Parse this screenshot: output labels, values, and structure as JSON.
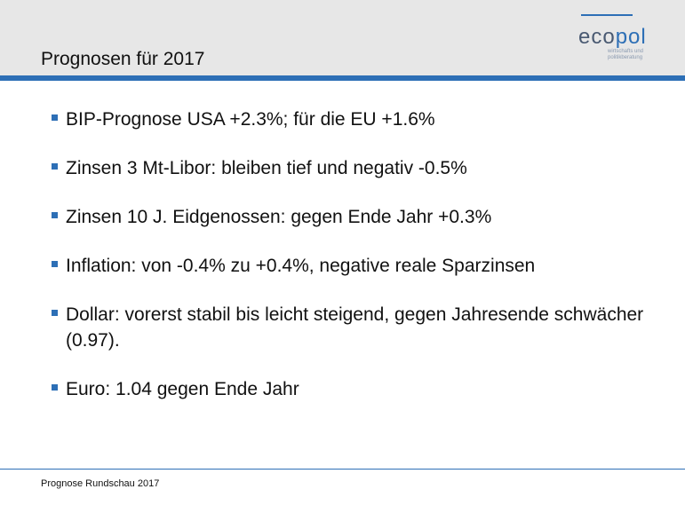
{
  "header": {
    "title": "Prognosen für 2017"
  },
  "logo": {
    "word_main": "eco",
    "word_accent": "pol",
    "tagline_line1": "wirtschafts und",
    "tagline_line2": "politikberatung"
  },
  "bullets": [
    {
      "text": "BIP-Prognose USA +2.3%; für die EU +1.6%"
    },
    {
      "text": "Zinsen 3 Mt-Libor: bleiben tief und negativ -0.5%"
    },
    {
      "text": "Zinsen 10 J. Eidgenossen: gegen Ende Jahr +0.3%"
    },
    {
      "text": "Inflation: von -0.4% zu +0.4%, negative reale Sparzinsen"
    },
    {
      "text": "Dollar: vorerst stabil bis leicht steigend, gegen Jahresende schwächer (0.97)."
    },
    {
      "text": "Euro: 1.04 gegen Ende Jahr"
    }
  ],
  "footer": {
    "text": "Prognose Rundschau 2017"
  },
  "colors": {
    "accent": "#2d6fb6",
    "header_bg": "#e7e7e7"
  }
}
